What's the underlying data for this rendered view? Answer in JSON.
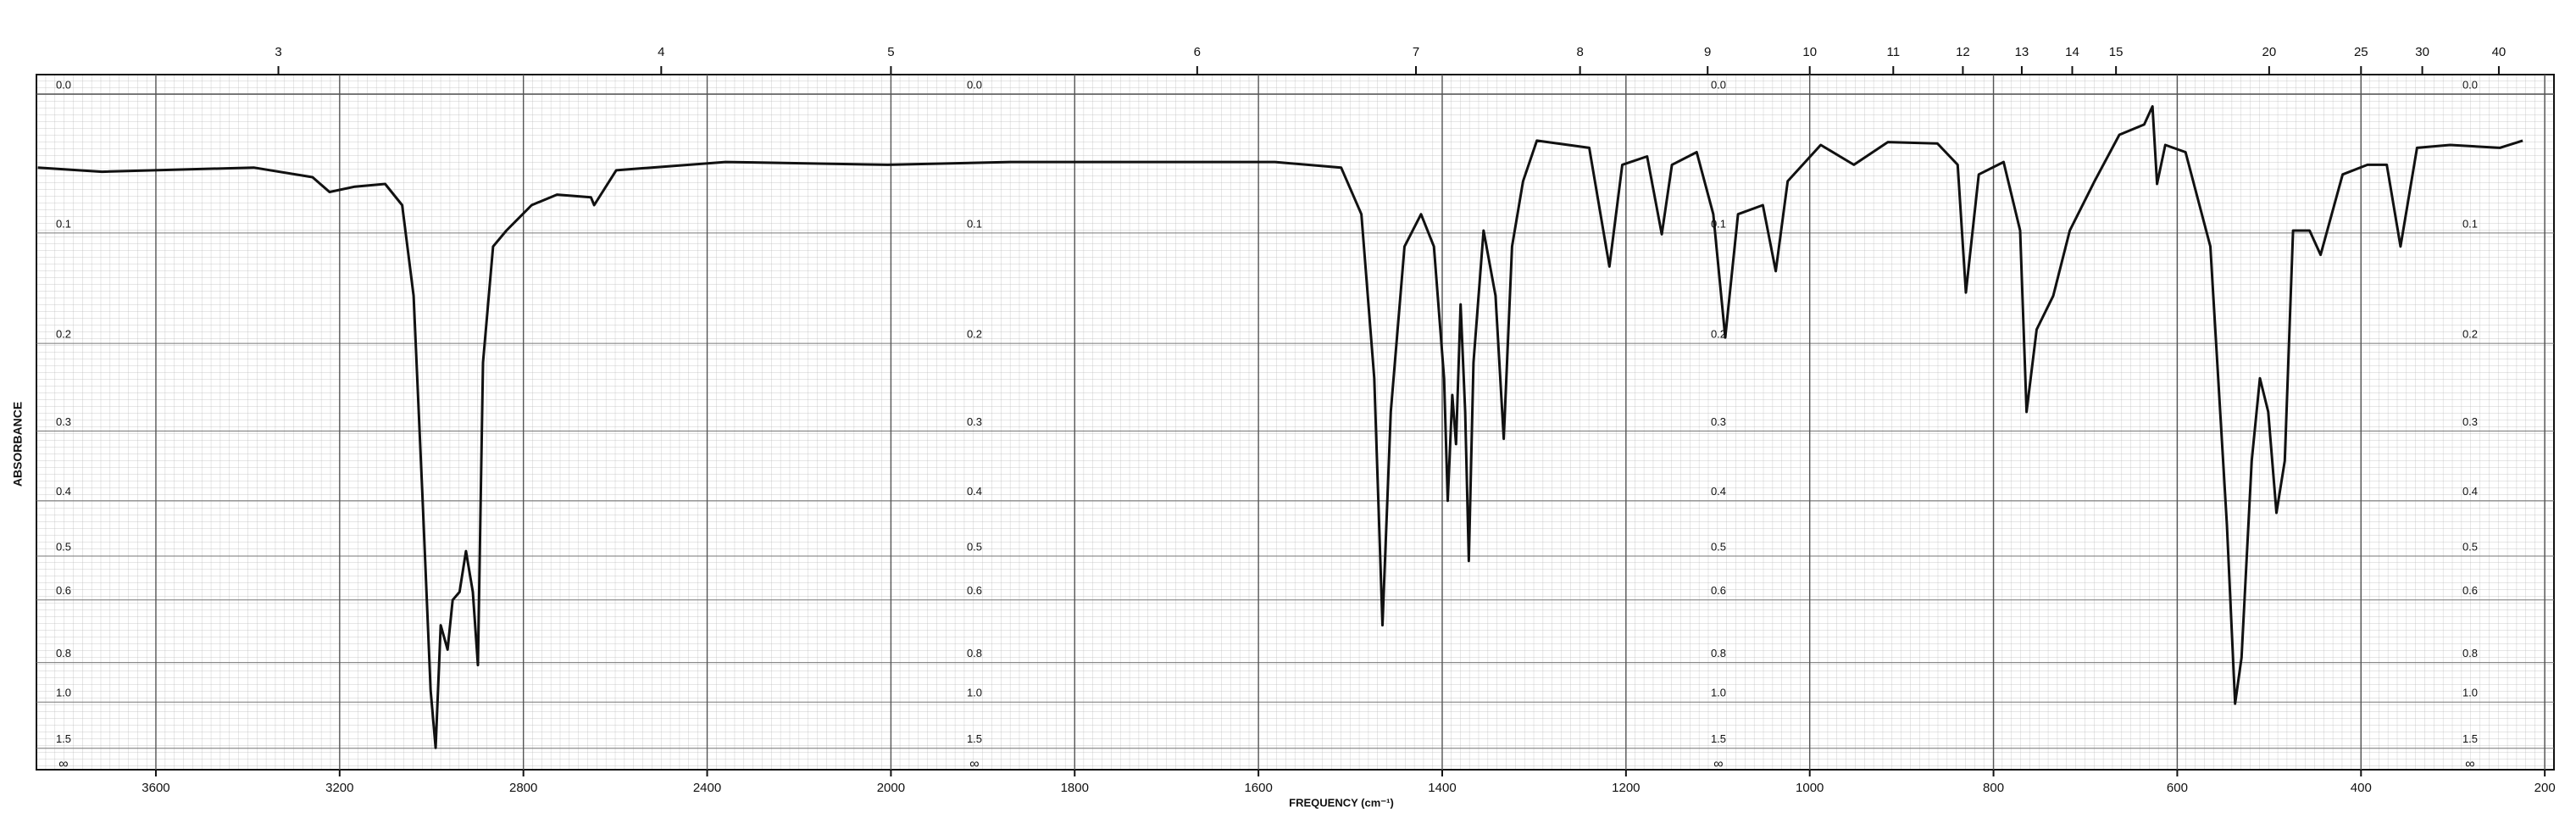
{
  "chart_data": {
    "type": "line",
    "x_label": "FREQUENCY (cm⁻¹)",
    "y_label": "ABSORBANCE",
    "x": [
      3857,
      3717,
      3387,
      3259,
      3222,
      3167,
      3101,
      3064,
      3039,
      3020,
      3002,
      2991,
      2980,
      2965,
      2954,
      2939,
      2925,
      2910,
      2899,
      2888,
      2866,
      2837,
      2782,
      2727,
      2653,
      2646,
      2598,
      2360,
      2007,
      1870,
      1582,
      1510,
      1488,
      1474,
      1465,
      1456,
      1441,
      1423,
      1409,
      1398,
      1394,
      1389,
      1385,
      1380,
      1375,
      1371,
      1366,
      1355,
      1342,
      1333,
      1324,
      1312,
      1297,
      1240,
      1218,
      1204,
      1177,
      1161,
      1150,
      1123,
      1105,
      1092,
      1078,
      1051,
      1037,
      1024,
      988,
      952,
      915,
      861,
      839,
      830,
      816,
      789,
      771,
      764,
      753,
      735,
      717,
      690,
      663,
      636,
      627,
      622,
      613,
      591,
      564,
      546,
      537,
      530,
      519,
      510,
      501,
      492,
      483,
      474,
      456,
      444,
      420,
      393,
      372,
      357,
      339,
      303,
      249,
      224
    ],
    "values": [
      0.05,
      0.053,
      0.05,
      0.057,
      0.068,
      0.064,
      0.062,
      0.078,
      0.154,
      0.388,
      0.93,
      1.49,
      0.67,
      0.75,
      0.6,
      0.58,
      0.49,
      0.58,
      0.81,
      0.22,
      0.111,
      0.098,
      0.078,
      0.07,
      0.072,
      0.078,
      0.052,
      0.046,
      0.048,
      0.046,
      0.046,
      0.05,
      0.085,
      0.237,
      0.67,
      0.276,
      0.111,
      0.085,
      0.111,
      0.237,
      0.4,
      0.256,
      0.317,
      0.162,
      0.276,
      0.51,
      0.22,
      0.098,
      0.154,
      0.31,
      0.111,
      0.06,
      0.031,
      0.036,
      0.128,
      0.048,
      0.042,
      0.101,
      0.048,
      0.039,
      0.085,
      0.194,
      0.085,
      0.078,
      0.132,
      0.06,
      0.034,
      0.048,
      0.032,
      0.033,
      0.048,
      0.151,
      0.055,
      0.046,
      0.098,
      0.276,
      0.186,
      0.154,
      0.098,
      0.06,
      0.027,
      0.02,
      0.008,
      0.062,
      0.034,
      0.039,
      0.111,
      0.44,
      1.01,
      0.78,
      0.34,
      0.237,
      0.276,
      0.42,
      0.34,
      0.098,
      0.098,
      0.118,
      0.055,
      0.048,
      0.048,
      0.111,
      0.036,
      0.034,
      0.036,
      0.031
    ],
    "color": "#111111",
    "xlim": [
      3860,
      190
    ],
    "x_scale_change_at": 2000,
    "xticks": [
      3600,
      3200,
      2800,
      2400,
      2000,
      1800,
      1600,
      1400,
      1200,
      1000,
      800,
      600,
      400,
      200
    ],
    "x2ticks": [
      3,
      4,
      5,
      6,
      7,
      8,
      9,
      10,
      11,
      12,
      13,
      14,
      15,
      20,
      25,
      30,
      40
    ],
    "ylim": [
      0,
      "∞"
    ],
    "yscale": "absorbance",
    "yticks": [
      {
        "value": 0,
        "label": "0.0"
      },
      0.1,
      0.2,
      0.3,
      0.4,
      0.5,
      0.6,
      0.8,
      {
        "value": 1,
        "label": "1.0"
      },
      1.5
    ],
    "grid": true
  }
}
